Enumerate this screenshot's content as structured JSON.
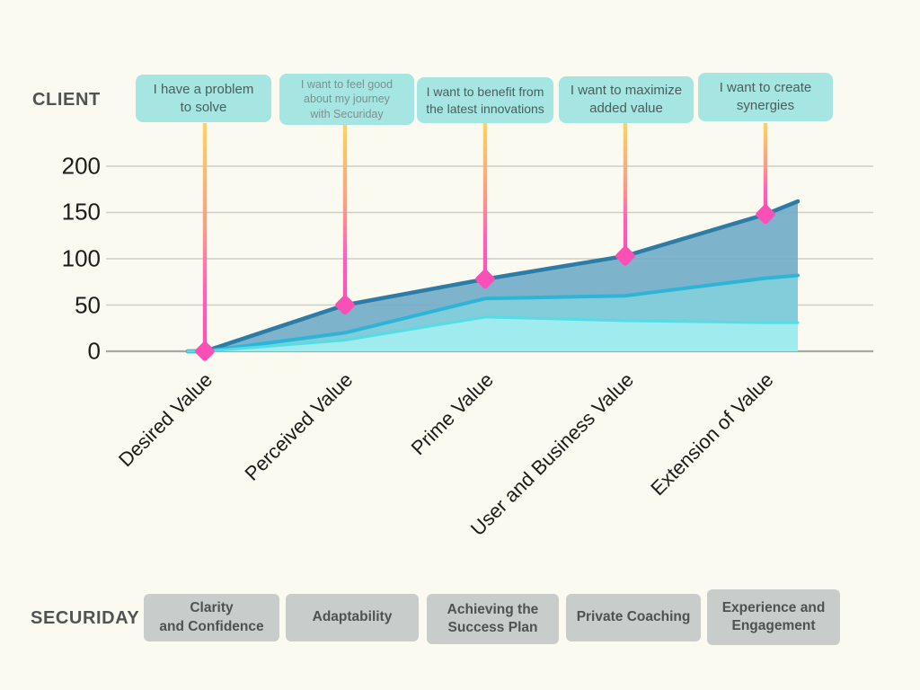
{
  "header": {
    "client_label": "CLIENT",
    "securiday_label": "SECURIDAY"
  },
  "callouts": [
    {
      "text": "I have a problem\nto solve"
    },
    {
      "text": "I want to feel good\nabout my journey\nwith Securiday"
    },
    {
      "text": "I want to benefit from\nthe latest innovations"
    },
    {
      "text": "I want to maximize\nadded value"
    },
    {
      "text": "I want to create\nsynergies"
    }
  ],
  "securiday_steps": [
    {
      "label": "Clarity\nand Confidence"
    },
    {
      "label": "Adaptability"
    },
    {
      "label": "Achieving the\nSuccess Plan"
    },
    {
      "label": "Private Coaching"
    },
    {
      "label": "Experience and\nEngagement"
    }
  ],
  "chart_data": {
    "type": "area",
    "title": "",
    "categories": [
      "Desired Value",
      "Perceived Value",
      "Prime Value",
      "User and Business Value",
      "Extension of Value"
    ],
    "series": [
      {
        "values": [
          0,
          50,
          78,
          103,
          148
        ],
        "right_edge_value": 162,
        "fill": "#74adc9",
        "line": "#2c7ca6"
      },
      {
        "values": [
          0,
          20,
          57,
          60,
          79
        ],
        "right_edge_value": 82,
        "fill": "#83cdda",
        "line": "#2eb4d7"
      },
      {
        "values": [
          0,
          12,
          37,
          33,
          31
        ],
        "right_edge_value": 31,
        "fill": "#a3edef",
        "line": "#55dce5"
      }
    ],
    "y_ticks": [
      0,
      50,
      100,
      150,
      200
    ],
    "ylim": [
      0,
      200
    ],
    "grid": "horizontal",
    "legend": "none",
    "markers": {
      "shape": "diamond",
      "color": "#fa4fb5",
      "on_series": 0
    },
    "drop_lines": {
      "gradient_top": "#fcd45f",
      "gradient_mid": "#f99e86",
      "gradient_bottom": "#fb4fb8"
    },
    "colors": {
      "background": "#fafaf0",
      "callout_fill": "#a5e6e2",
      "step_box_fill": "#c8cccb",
      "gridline": "#cecec6",
      "baseline": "#a9a9a2"
    }
  }
}
